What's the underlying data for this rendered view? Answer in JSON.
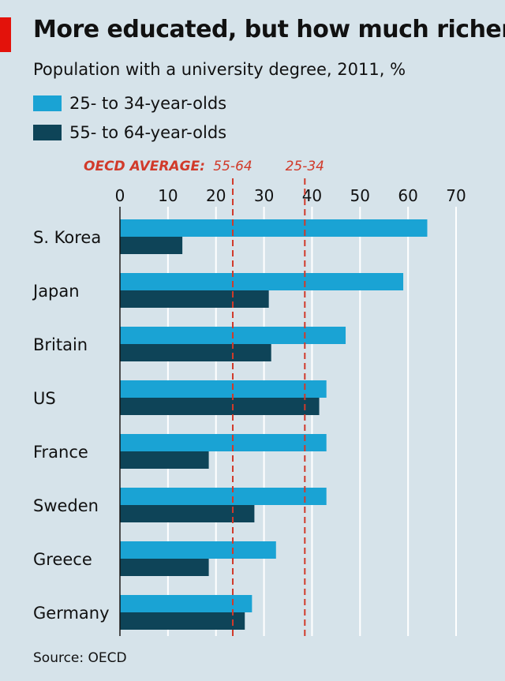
{
  "title": "More educated, but how much richer?",
  "subtitle": "Population with a university degree, 2011, %",
  "source": "Source: OECD",
  "colors": {
    "accent": "#e3120b",
    "young": "#1aa3d4",
    "old": "#0e4458",
    "background": "#d6e3ea",
    "grid": "#ffffff",
    "average": "#d13a2a"
  },
  "chart_data": {
    "type": "bar",
    "orientation": "horizontal",
    "categories": [
      "S. Korea",
      "Japan",
      "Britain",
      "US",
      "France",
      "Sweden",
      "Greece",
      "Germany"
    ],
    "series": [
      {
        "name": "25- to 34-year-olds",
        "values": [
          64,
          59,
          47,
          43,
          43,
          43,
          32.5,
          27.5
        ]
      },
      {
        "name": "55- to 64-year-olds",
        "values": [
          13,
          31,
          31.5,
          41.5,
          18.5,
          28,
          18.5,
          26
        ]
      }
    ],
    "xlim": [
      0,
      70
    ],
    "xticks": [
      0,
      10,
      20,
      30,
      40,
      50,
      60,
      70
    ],
    "grid": true,
    "legend": "top-left",
    "reference_lines": {
      "label": "OECD AVERAGE:",
      "lines": [
        {
          "name": "55-64",
          "value": 23.5
        },
        {
          "name": "25-34",
          "value": 38.5
        }
      ]
    }
  }
}
